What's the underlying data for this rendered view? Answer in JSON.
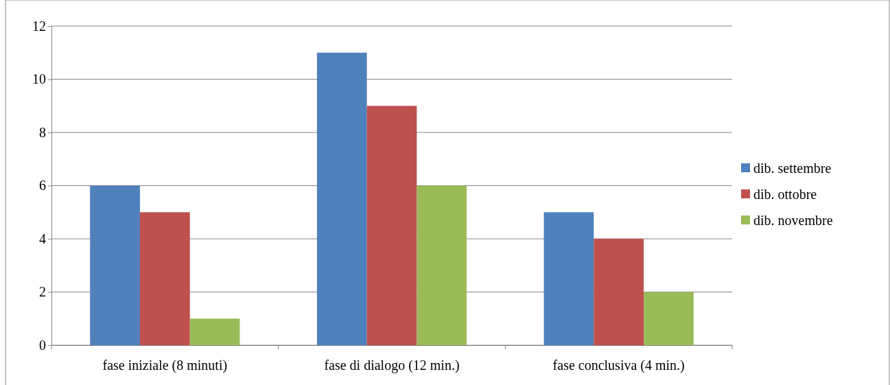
{
  "chart_data": {
    "type": "bar",
    "categories": [
      "fase iniziale  (8 minuti)",
      "fase di dialogo (12 min.)",
      "fase conclusiva (4 min.)"
    ],
    "series": [
      {
        "name": "dib. settembre",
        "color": "#4f81bd",
        "values": [
          6,
          11,
          5
        ]
      },
      {
        "name": "dib. ottobre",
        "color": "#c0504d",
        "values": [
          5,
          9,
          4
        ]
      },
      {
        "name": "dib. novembre",
        "color": "#9bbb59",
        "values": [
          1,
          6,
          2
        ]
      }
    ],
    "ylim": [
      0,
      12
    ],
    "yticks": [
      0,
      2,
      4,
      6,
      8,
      10,
      12
    ],
    "grid": "y",
    "legend": "right"
  }
}
